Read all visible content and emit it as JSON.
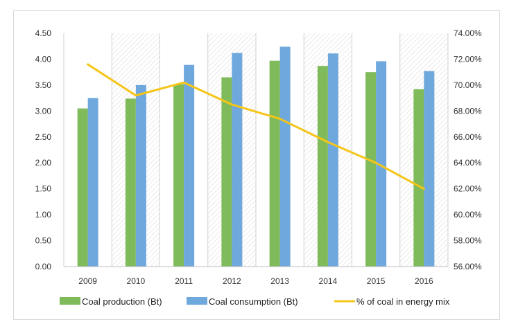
{
  "chart_data": {
    "type": "bar",
    "categories": [
      "2009",
      "2010",
      "2011",
      "2012",
      "2013",
      "2014",
      "2015",
      "2016"
    ],
    "series": [
      {
        "name": "Coal production (Bt)",
        "kind": "bar",
        "axis": "left",
        "color": "#7fba5b",
        "values": [
          3.05,
          3.24,
          3.52,
          3.65,
          3.97,
          3.87,
          3.75,
          3.42
        ]
      },
      {
        "name": "Coal consumption (Bt)",
        "kind": "bar",
        "axis": "left",
        "color": "#6fa8dc",
        "values": [
          3.25,
          3.5,
          3.89,
          4.12,
          4.24,
          4.11,
          3.96,
          3.77
        ]
      },
      {
        "name": "% of coal in energy mix",
        "kind": "line",
        "axis": "right",
        "color": "#f5c518",
        "values": [
          71.6,
          69.2,
          70.2,
          68.5,
          67.4,
          65.6,
          64.0,
          62.0
        ]
      }
    ],
    "ylim_left": [
      0,
      4.5
    ],
    "ylim_right": [
      56,
      74
    ],
    "y_left_ticks": [
      "0.00",
      "0.50",
      "1.00",
      "1.50",
      "2.00",
      "2.50",
      "3.00",
      "3.50",
      "4.00",
      "4.50"
    ],
    "y_right_ticks": [
      "56.00%",
      "58.00%",
      "60.00%",
      "62.00%",
      "64.00%",
      "66.00%",
      "68.00%",
      "70.00%",
      "72.00%",
      "74.00%"
    ],
    "grid": "vertical hatched bands",
    "legend_position": "bottom"
  }
}
